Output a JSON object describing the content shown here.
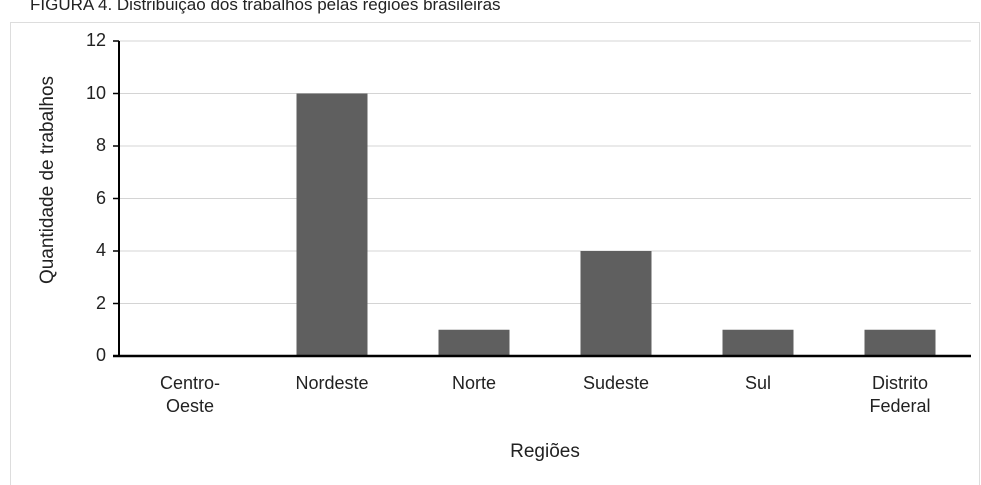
{
  "caption": "FIGURA 4. Distribuição dos trabalhos pelas regiões brasileiras",
  "chart_data": {
    "type": "bar",
    "categories": [
      "Centro-Oeste",
      "Nordeste",
      "Norte",
      "Sudeste",
      "Sul",
      "Distrito Federal"
    ],
    "values": [
      0,
      10,
      1,
      4,
      1,
      1
    ],
    "color": "#5f5f5f",
    "xlabel": "Regiões",
    "ylabel": "Quantidade de trabalhos",
    "ylim": [
      0,
      12
    ],
    "yticks": [
      0,
      2,
      4,
      6,
      8,
      10,
      12
    ],
    "grid": true
  }
}
